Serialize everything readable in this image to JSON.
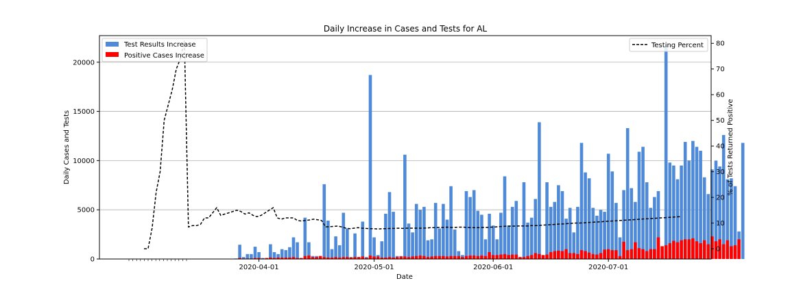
{
  "chart_data": {
    "type": "bar",
    "title": "Daily Increase in Cases and Tests for AL",
    "xlabel": "Date",
    "ylabel": "Daily Cases and Tests",
    "y2label": "% of Tests Returned Positive",
    "x_tick_labels": [
      "2020-04-01",
      "2020-05-01",
      "2020-06-01",
      "2020-07-01"
    ],
    "start_date": "2020-03-11",
    "ylim": [
      0,
      22700
    ],
    "yticks": [
      0,
      5000,
      10000,
      15000,
      20000
    ],
    "y2lim": [
      -4,
      83
    ],
    "y2ticks": [
      0,
      10,
      20,
      30,
      40,
      50,
      60,
      70,
      80
    ],
    "grid": "horizontal",
    "legend_left_placement": "top-left",
    "legend_right_placement": "top-right",
    "series": [
      {
        "name": "Test Results Increase",
        "color": "#4f8ad9",
        "kind": "bar",
        "values": [
          0,
          0,
          0,
          0,
          0,
          0,
          0,
          0,
          0,
          0,
          0,
          0,
          0,
          0,
          0,
          50,
          1450,
          200,
          500,
          500,
          1250,
          700,
          100,
          100,
          1500,
          700,
          500,
          1000,
          900,
          1200,
          2200,
          1700,
          100,
          4200,
          1700,
          300,
          300,
          300,
          7600,
          3900,
          1000,
          2300,
          1400,
          4700,
          3100,
          200,
          2600,
          200,
          3800,
          200,
          18700,
          2200,
          400,
          1800,
          4600,
          6800,
          4800,
          300,
          300,
          10600,
          3600,
          2700,
          5600,
          5000,
          5300,
          1900,
          2000,
          5700,
          3100,
          5600,
          4000,
          7400,
          3000,
          800,
          400,
          6900,
          6300,
          7000,
          4900,
          4500,
          2000,
          4600,
          3400,
          2000,
          4700,
          8400,
          3400,
          5300,
          5900,
          100,
          7800,
          3700,
          4200,
          6100,
          13900,
          300,
          7800,
          5300,
          5800,
          7500,
          6900,
          4100,
          5200,
          2700,
          5300,
          11800,
          8800,
          8200,
          5200,
          4400,
          5000,
          4800,
          10700,
          8900,
          5700,
          2200,
          7000,
          13300,
          7200,
          5800,
          10900,
          11400,
          7800,
          5200,
          6300,
          6900,
          300,
          21700,
          9800,
          9500,
          8100,
          9500,
          11900,
          10000,
          12000,
          11400,
          11000,
          8300,
          6600,
          9100,
          10000,
          9400,
          12600,
          8100,
          8200,
          7400,
          2800,
          11800
        ]
      },
      {
        "name": "Positive Cases Increase",
        "color": "#ff0000",
        "kind": "bar",
        "values": [
          0,
          0,
          0,
          0,
          0,
          0,
          0,
          0,
          0,
          0,
          0,
          0,
          0,
          0,
          0,
          0,
          100,
          50,
          50,
          50,
          100,
          100,
          50,
          100,
          150,
          100,
          150,
          150,
          150,
          150,
          200,
          100,
          100,
          300,
          350,
          200,
          200,
          300,
          200,
          150,
          150,
          200,
          150,
          200,
          200,
          150,
          200,
          200,
          250,
          100,
          350,
          250,
          250,
          150,
          150,
          200,
          150,
          200,
          250,
          250,
          200,
          250,
          300,
          350,
          300,
          200,
          250,
          300,
          300,
          300,
          250,
          300,
          300,
          300,
          200,
          300,
          350,
          350,
          300,
          350,
          300,
          700,
          400,
          400,
          450,
          500,
          400,
          450,
          450,
          200,
          200,
          300,
          400,
          600,
          500,
          400,
          450,
          700,
          800,
          850,
          800,
          1000,
          600,
          600,
          500,
          900,
          800,
          650,
          500,
          450,
          600,
          950,
          1000,
          900,
          900,
          300,
          1750,
          900,
          1000,
          1700,
          1100,
          1000,
          800,
          1000,
          1000,
          2200,
          1300,
          1400,
          1600,
          1850,
          1700,
          1900,
          2000,
          2000,
          2100,
          1800,
          1600,
          1900,
          1500,
          2300,
          1800,
          2000,
          1500,
          1900,
          1300,
          1400,
          2000
        ]
      },
      {
        "name": "Testing Percent",
        "color": "#000000",
        "kind": "line",
        "dash": true,
        "start_index": 4,
        "values": [
          0,
          0,
          8,
          22,
          30,
          50,
          56,
          62,
          70,
          74,
          81,
          8.5,
          9,
          9,
          9.5,
          12,
          12,
          14,
          16,
          13,
          13.5,
          14,
          14.5,
          15,
          14.5,
          13.5,
          14,
          13,
          12.5,
          13,
          14,
          15,
          16,
          12,
          11.5,
          12,
          12,
          12,
          11,
          10.8,
          11,
          11.2,
          11.5,
          11.3,
          11,
          8.5,
          8.6,
          8.7,
          8.8,
          8.5,
          8,
          7.8,
          8,
          8.2,
          8,
          7.9,
          7.8,
          7.8,
          7.7,
          7.8,
          7.8,
          7.9,
          7.9,
          8,
          7.9,
          8,
          8,
          8,
          8,
          8,
          8.1,
          8.2,
          8.2,
          8.3,
          8.3,
          8.4,
          8.3,
          8.3,
          8.4,
          8.4,
          8.3,
          8.2,
          8.2,
          8.2,
          8.3,
          8.3,
          8.4,
          8.5,
          8.6,
          8.7,
          8.8,
          8.8,
          8.8,
          8.9,
          8.9,
          8.9,
          9,
          9,
          9.1,
          9.2,
          9.3,
          9.4,
          9.5,
          9.6,
          9.7,
          9.8,
          9.9,
          10,
          10,
          10.1,
          10.2,
          10.3,
          10.4,
          10.5,
          10.6,
          10.7,
          10.8,
          10.9,
          11,
          11.1,
          11.2,
          11.3,
          11.4,
          11.5,
          11.6,
          11.7,
          11.8,
          11.9,
          12,
          12.1,
          12.2,
          12.3,
          12.4,
          12.5
        ]
      }
    ]
  }
}
